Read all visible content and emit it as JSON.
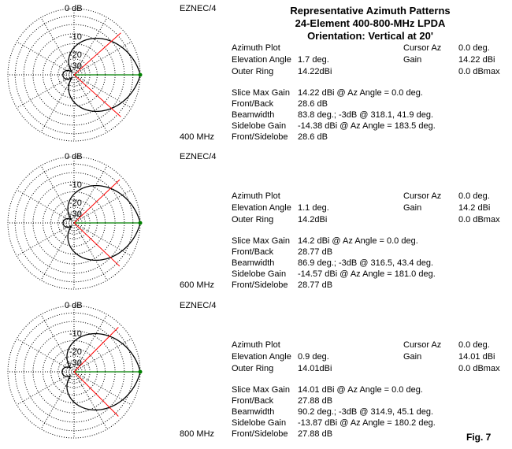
{
  "title": {
    "line1": "Representative Azimuth Patterns",
    "line2": "24-Element 400-800-MHz LPDA",
    "line3": "Orientation: Vertical at 20'"
  },
  "figure_label": "Fig. 7",
  "ring_labels": [
    "0 dB",
    "-10",
    "-20",
    "-30"
  ],
  "colors": {
    "pattern": "#000000",
    "cursor": "#008000",
    "beamwidth_lines": "#ff0000",
    "grid": "#000000"
  },
  "panels": [
    {
      "software": "EZNEC/4",
      "frequency": "400 MHz",
      "info": {
        "azimuth_plot": "Azimuth Plot",
        "elevation_angle_label": "Elevation Angle",
        "elevation_angle": "1.7 deg.",
        "outer_ring_label": "Outer Ring",
        "outer_ring": "14.22dBi",
        "cursor_az_label": "Cursor Az",
        "cursor_az": "0.0 deg.",
        "gain_label": "Gain",
        "gain": "14.22 dBi",
        "gain_max": "0.0 dBmax",
        "slice_max_gain_label": "Slice Max Gain",
        "slice_max_gain": "14.22 dBi @ Az Angle = 0.0 deg.",
        "front_back_label": "Front/Back",
        "front_back": "28.6 dB",
        "beamwidth_label": "Beamwidth",
        "beamwidth": "83.8 deg.; -3dB @ 318.1, 41.9 deg.",
        "sidelobe_gain_label": "Sidelobe Gain",
        "sidelobe_gain": "-14.38 dBi @ Az Angle = 183.5 deg.",
        "front_sidelobe_label": "Front/Sidelobe",
        "front_sidelobe": "28.6 dB"
      },
      "pattern": {
        "beamwidth_deg": 83.8,
        "bw_left_deg": 318.1,
        "bw_right_deg": 41.9,
        "front_back_db": 28.6,
        "sidelobe_az_deg": 183.5
      }
    },
    {
      "software": "EZNEC/4",
      "frequency": "600 MHz",
      "info": {
        "azimuth_plot": "Azimuth Plot",
        "elevation_angle_label": "Elevation Angle",
        "elevation_angle": "1.1 deg.",
        "outer_ring_label": "Outer Ring",
        "outer_ring": "14.2dBi",
        "cursor_az_label": "Cursor Az",
        "cursor_az": "0.0 deg.",
        "gain_label": "Gain",
        "gain": "14.2 dBi",
        "gain_max": "0.0 dBmax",
        "slice_max_gain_label": "Slice Max Gain",
        "slice_max_gain": "14.2 dBi @ Az Angle = 0.0 deg.",
        "front_back_label": "Front/Back",
        "front_back": "28.77 dB",
        "beamwidth_label": "Beamwidth",
        "beamwidth": "86.9 deg.; -3dB @ 316.5, 43.4 deg.",
        "sidelobe_gain_label": "Sidelobe Gain",
        "sidelobe_gain": "-14.57 dBi @ Az Angle = 181.0 deg.",
        "front_sidelobe_label": "Front/Sidelobe",
        "front_sidelobe": "28.77 dB"
      },
      "pattern": {
        "beamwidth_deg": 86.9,
        "bw_left_deg": 316.5,
        "bw_right_deg": 43.4,
        "front_back_db": 28.77,
        "sidelobe_az_deg": 181.0
      }
    },
    {
      "software": "EZNEC/4",
      "frequency": "800 MHz",
      "info": {
        "azimuth_plot": "Azimuth Plot",
        "elevation_angle_label": "Elevation Angle",
        "elevation_angle": "0.9 deg.",
        "outer_ring_label": "Outer Ring",
        "outer_ring": "14.01dBi",
        "cursor_az_label": "Cursor Az",
        "cursor_az": "0.0 deg.",
        "gain_label": "Gain",
        "gain": "14.01 dBi",
        "gain_max": "0.0 dBmax",
        "slice_max_gain_label": "Slice Max Gain",
        "slice_max_gain": "14.01 dBi @ Az Angle = 0.0 deg.",
        "front_back_label": "Front/Back",
        "front_back": "27.88 dB",
        "beamwidth_label": "Beamwidth",
        "beamwidth": "90.2 deg.; -3dB @ 314.9, 45.1 deg.",
        "sidelobe_gain_label": "Sidelobe Gain",
        "sidelobe_gain": "-13.87 dBi @ Az Angle = 180.2 deg.",
        "front_sidelobe_label": "Front/Sidelobe",
        "front_sidelobe": "27.88 dB"
      },
      "pattern": {
        "beamwidth_deg": 90.2,
        "bw_left_deg": 314.9,
        "bw_right_deg": 45.1,
        "front_back_db": 27.88,
        "sidelobe_az_deg": 180.2
      }
    }
  ]
}
